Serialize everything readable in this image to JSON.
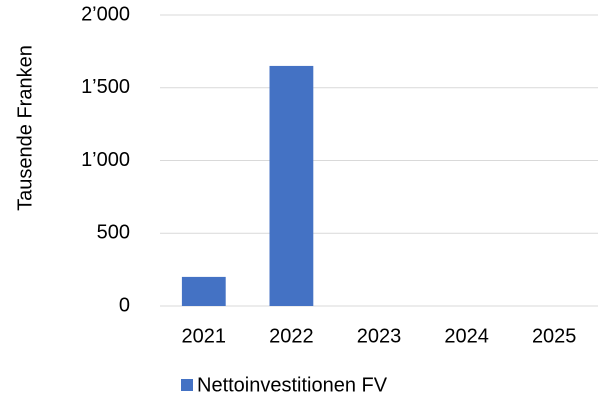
{
  "chart_data": {
    "type": "bar",
    "y_label": "Tausende Franken",
    "categories": [
      "2021",
      "2022",
      "2023",
      "2024",
      "2025"
    ],
    "series": [
      {
        "name": "Nettoinvestitionen FV",
        "color": "#4472c4",
        "values": [
          200,
          1650,
          0,
          0,
          0
        ]
      }
    ],
    "ylim": [
      0,
      2000
    ],
    "yticks": [
      0,
      500,
      {
        "value": 1000,
        "label": "1’000"
      },
      {
        "value": 1500,
        "label": "1’500"
      },
      {
        "value": 2000,
        "label": "2’000"
      }
    ],
    "grid": true,
    "legend": "bottom"
  }
}
